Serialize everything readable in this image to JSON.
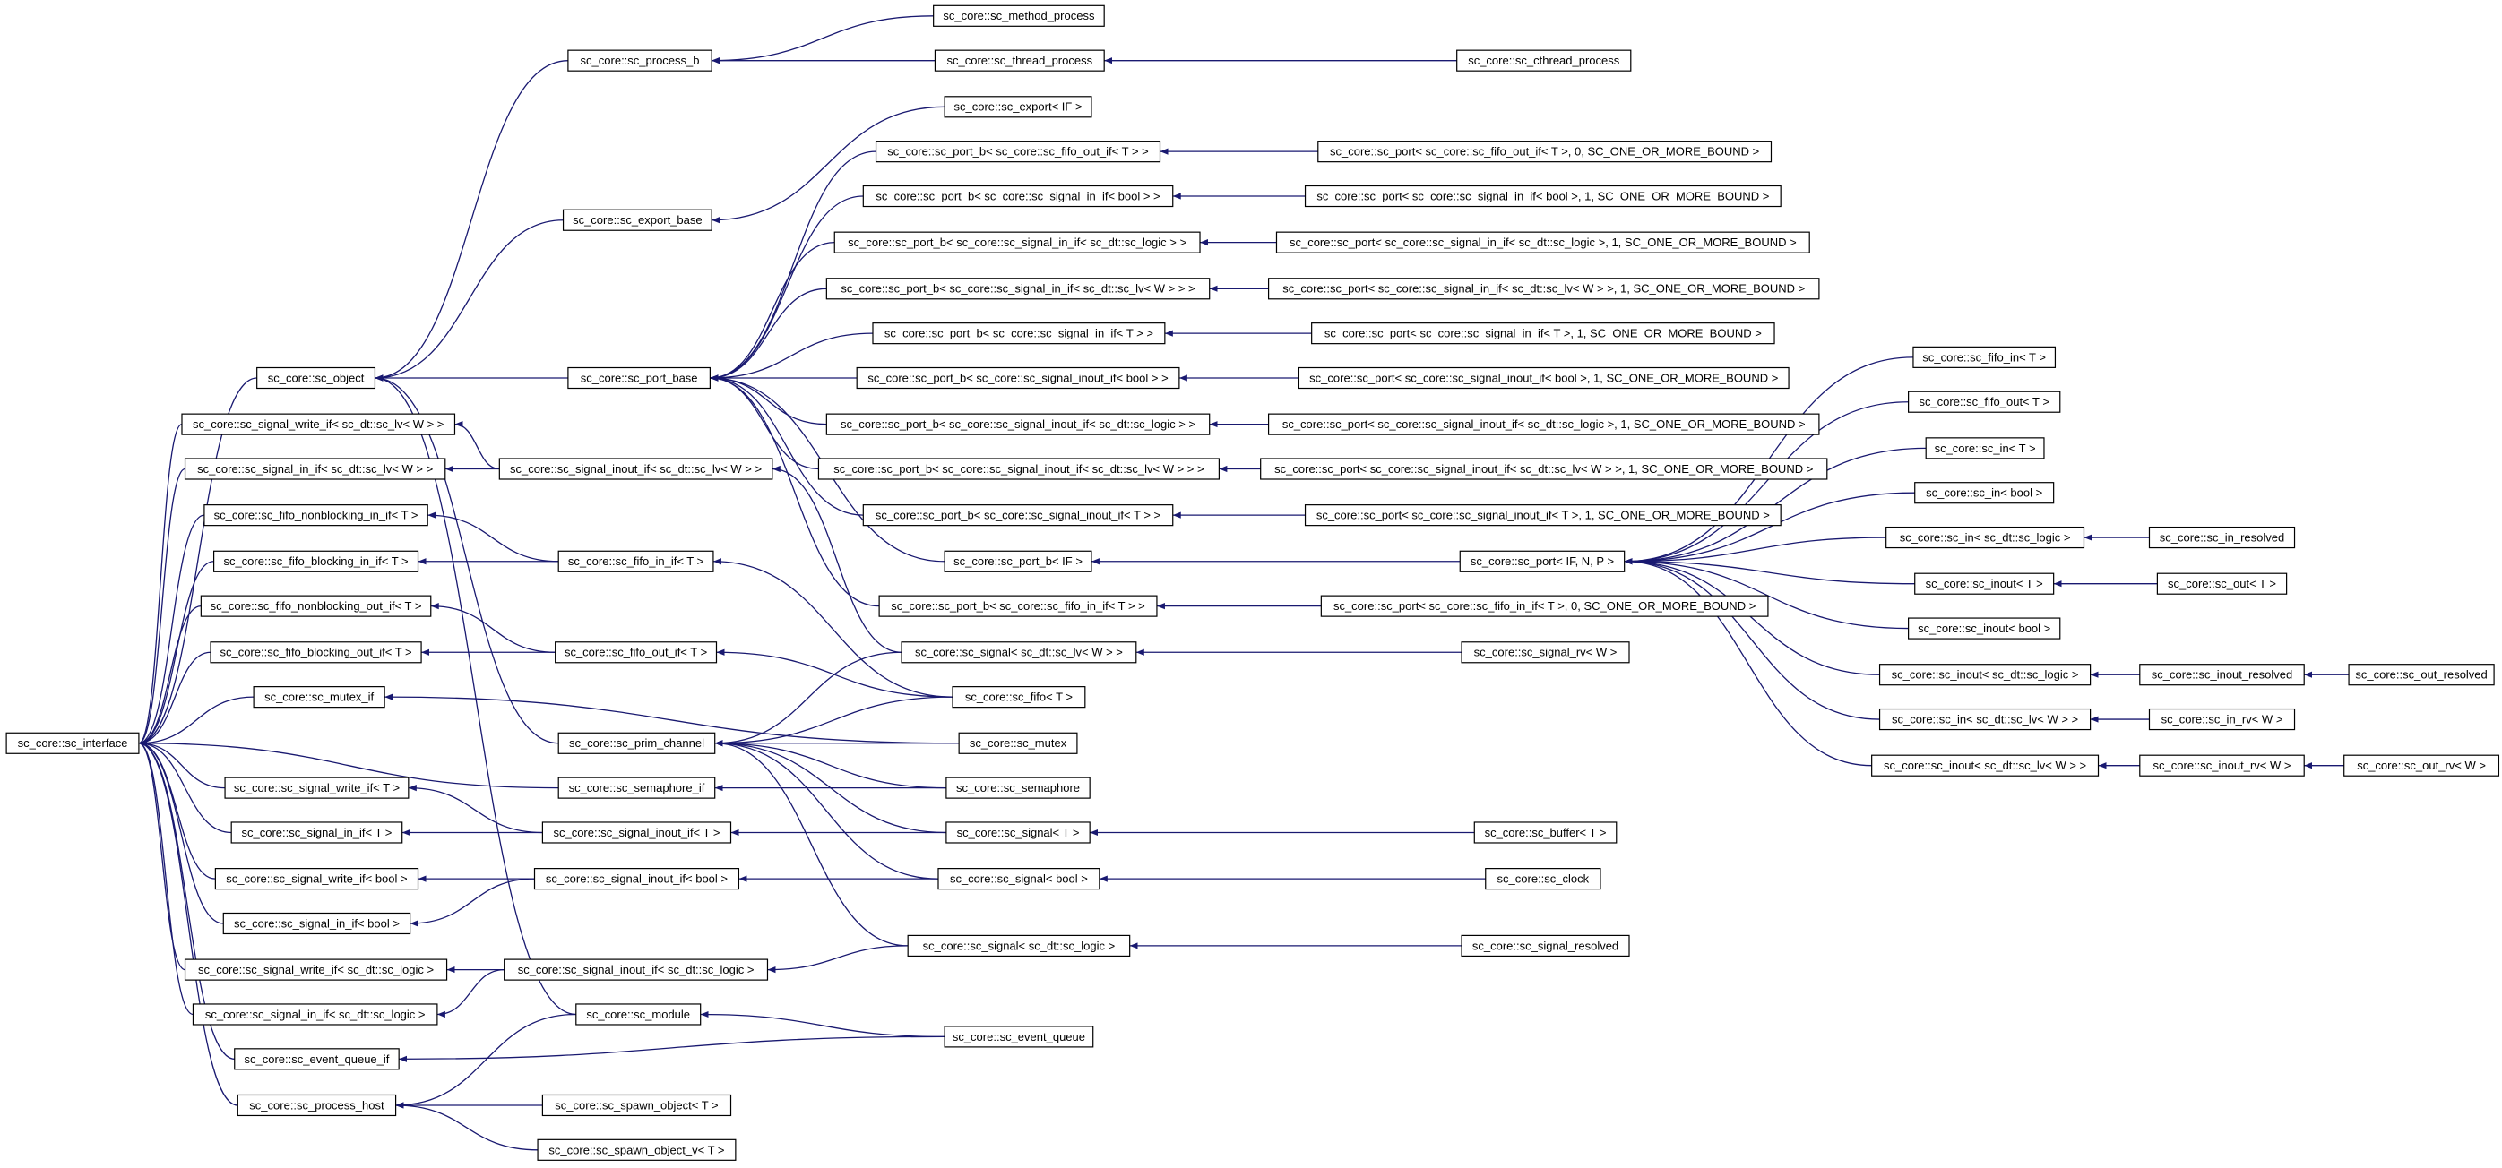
{
  "nodes": [
    {
      "label": "sc_core::sc_method_process"
    },
    {
      "label": "sc_core::sc_process_b"
    },
    {
      "label": "sc_core::sc_thread_process"
    },
    {
      "label": "sc_core::sc_cthread_process"
    },
    {
      "label": "sc_core::sc_export< IF >"
    },
    {
      "label": "sc_core::sc_port_b< sc_core::sc_fifo_out_if< T > >"
    },
    {
      "label": "sc_core::sc_port< sc_core::sc_fifo_out_if< T >, 0, SC_ONE_OR_MORE_BOUND >"
    },
    {
      "label": "sc_core::sc_export_base"
    },
    {
      "label": "sc_core::sc_port_b< sc_core::sc_signal_in_if< bool > >"
    },
    {
      "label": "sc_core::sc_port< sc_core::sc_signal_in_if< bool >, 1, SC_ONE_OR_MORE_BOUND >"
    },
    {
      "label": "sc_core::sc_port_b< sc_core::sc_signal_in_if< sc_dt::sc_logic > >"
    },
    {
      "label": "sc_core::sc_port< sc_core::sc_signal_in_if< sc_dt::sc_logic >, 1, SC_ONE_OR_MORE_BOUND >"
    },
    {
      "label": "sc_core::sc_port_b< sc_core::sc_signal_in_if< sc_dt::sc_lv< W > > >"
    },
    {
      "label": "sc_core::sc_port< sc_core::sc_signal_in_if< sc_dt::sc_lv< W > >, 1, SC_ONE_OR_MORE_BOUND >"
    },
    {
      "label": "sc_core::sc_port_b< sc_core::sc_signal_in_if< T > >"
    },
    {
      "label": "sc_core::sc_port< sc_core::sc_signal_in_if< T >, 1, SC_ONE_OR_MORE_BOUND >"
    },
    {
      "label": "sc_core::sc_object"
    },
    {
      "label": "sc_core::sc_port_base"
    },
    {
      "label": "sc_core::sc_port_b< sc_core::sc_signal_inout_if< bool > >"
    },
    {
      "label": "sc_core::sc_port< sc_core::sc_signal_inout_if< bool >, 1, SC_ONE_OR_MORE_BOUND >"
    },
    {
      "label": "sc_core::sc_signal_write_if< sc_dt::sc_lv< W > >"
    },
    {
      "label": "sc_core::sc_port_b< sc_core::sc_signal_inout_if< sc_dt::sc_logic > >"
    },
    {
      "label": "sc_core::sc_port< sc_core::sc_signal_inout_if< sc_dt::sc_logic >, 1, SC_ONE_OR_MORE_BOUND >"
    },
    {
      "label": "sc_core::sc_signal_in_if< sc_dt::sc_lv< W > >"
    },
    {
      "label": "sc_core::sc_signal_inout_if< sc_dt::sc_lv< W > >"
    },
    {
      "label": "sc_core::sc_port_b< sc_core::sc_signal_inout_if< sc_dt::sc_lv< W > > >"
    },
    {
      "label": "sc_core::sc_port< sc_core::sc_signal_inout_if< sc_dt::sc_lv< W > >, 1, SC_ONE_OR_MORE_BOUND >"
    },
    {
      "label": "sc_core::sc_port_b< sc_core::sc_signal_inout_if< T > >"
    },
    {
      "label": "sc_core::sc_port< sc_core::sc_signal_inout_if< T >, 1, SC_ONE_OR_MORE_BOUND >"
    },
    {
      "label": "sc_core::sc_fifo_nonblocking_in_if< T >"
    },
    {
      "label": "sc_core::sc_fifo_blocking_in_if< T >"
    },
    {
      "label": "sc_core::sc_fifo_in_if< T >"
    },
    {
      "label": "sc_core::sc_port_b< IF >"
    },
    {
      "label": "sc_core::sc_port< IF, N, P >"
    },
    {
      "label": "sc_core::sc_port_b< sc_core::sc_fifo_in_if< T > >"
    },
    {
      "label": "sc_core::sc_port< sc_core::sc_fifo_in_if< T >, 0, SC_ONE_OR_MORE_BOUND >"
    },
    {
      "label": "sc_core::sc_fifo_nonblocking_out_if< T >"
    },
    {
      "label": "sc_core::sc_fifo_blocking_out_if< T >"
    },
    {
      "label": "sc_core::sc_fifo_out_if< T >"
    },
    {
      "label": "sc_core::sc_signal< sc_dt::sc_lv< W > >"
    },
    {
      "label": "sc_core::sc_signal_rv< W >"
    },
    {
      "label": "sc_core::sc_mutex_if"
    },
    {
      "label": "sc_core::sc_fifo< T >"
    },
    {
      "label": "sc_core::sc_interface"
    },
    {
      "label": "sc_core::sc_prim_channel"
    },
    {
      "label": "sc_core::sc_mutex"
    },
    {
      "label": "sc_core::sc_semaphore_if"
    },
    {
      "label": "sc_core::sc_semaphore"
    },
    {
      "label": "sc_core::sc_signal_write_if< T >"
    },
    {
      "label": "sc_core::sc_signal_in_if< T >"
    },
    {
      "label": "sc_core::sc_signal_inout_if< T >"
    },
    {
      "label": "sc_core::sc_signal< T >"
    },
    {
      "label": "sc_core::sc_buffer< T >"
    },
    {
      "label": "sc_core::sc_signal_write_if< bool >"
    },
    {
      "label": "sc_core::sc_signal_inout_if< bool >"
    },
    {
      "label": "sc_core::sc_signal< bool >"
    },
    {
      "label": "sc_core::sc_clock"
    },
    {
      "label": "sc_core::sc_signal_in_if< bool >"
    },
    {
      "label": "sc_core::sc_signal_write_if< sc_dt::sc_logic >"
    },
    {
      "label": "sc_core::sc_signal_inout_if< sc_dt::sc_logic >"
    },
    {
      "label": "sc_core::sc_signal< sc_dt::sc_logic >"
    },
    {
      "label": "sc_core::sc_signal_resolved"
    },
    {
      "label": "sc_core::sc_signal_in_if< sc_dt::sc_logic >"
    },
    {
      "label": "sc_core::sc_module"
    },
    {
      "label": "sc_core::sc_event_queue_if"
    },
    {
      "label": "sc_core::sc_event_queue"
    },
    {
      "label": "sc_core::sc_process_host"
    },
    {
      "label": "sc_core::sc_spawn_object< T >"
    },
    {
      "label": "sc_core::sc_spawn_object_v< T >"
    },
    {
      "label": "sc_core::sc_fifo_in< T >"
    },
    {
      "label": "sc_core::sc_fifo_out< T >"
    },
    {
      "label": "sc_core::sc_in< T >"
    },
    {
      "label": "sc_core::sc_in< bool >"
    },
    {
      "label": "sc_core::sc_in< sc_dt::sc_logic >"
    },
    {
      "label": "sc_core::sc_in_resolved"
    },
    {
      "label": "sc_core::sc_inout< T >"
    },
    {
      "label": "sc_core::sc_out< T >"
    },
    {
      "label": "sc_core::sc_inout< bool >"
    },
    {
      "label": "sc_core::sc_inout< sc_dt::sc_logic >"
    },
    {
      "label": "sc_core::sc_inout_resolved"
    },
    {
      "label": "sc_core::sc_out_resolved"
    },
    {
      "label": "sc_core::sc_in< sc_dt::sc_lv< W > >"
    },
    {
      "label": "sc_core::sc_in_rv< W >"
    },
    {
      "label": "sc_core::sc_inout< sc_dt::sc_lv< W > >"
    },
    {
      "label": "sc_core::sc_inout_rv< W >"
    },
    {
      "label": "sc_core::sc_out_rv< W >"
    }
  ]
}
